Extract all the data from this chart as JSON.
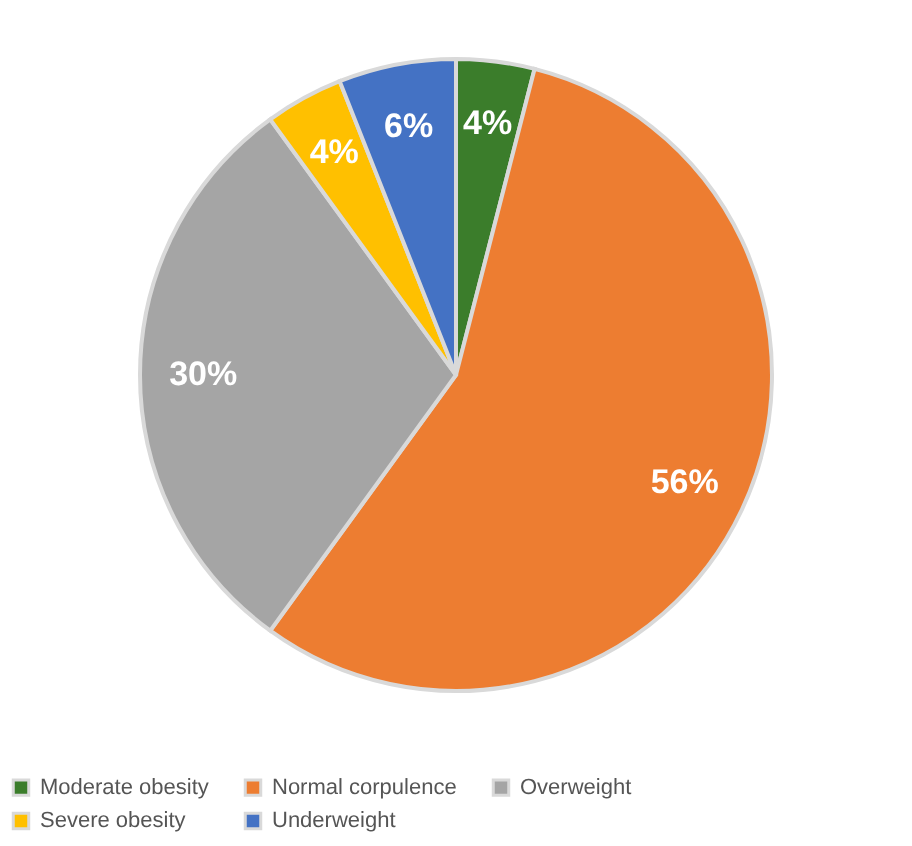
{
  "chart_data": {
    "type": "pie",
    "categories": [
      "Moderate obesity",
      "Normal corpulence",
      "Overweight",
      "Severe obesity",
      "Underweight"
    ],
    "values": [
      4,
      56,
      30,
      4,
      6
    ],
    "colors": [
      "#3b7d2b",
      "#ed7d31",
      "#a5a5a5",
      "#ffc000",
      "#4472c4"
    ],
    "value_labels": [
      "4%",
      "56%",
      "30%",
      "4%",
      "6%"
    ],
    "legend": "bottom"
  }
}
